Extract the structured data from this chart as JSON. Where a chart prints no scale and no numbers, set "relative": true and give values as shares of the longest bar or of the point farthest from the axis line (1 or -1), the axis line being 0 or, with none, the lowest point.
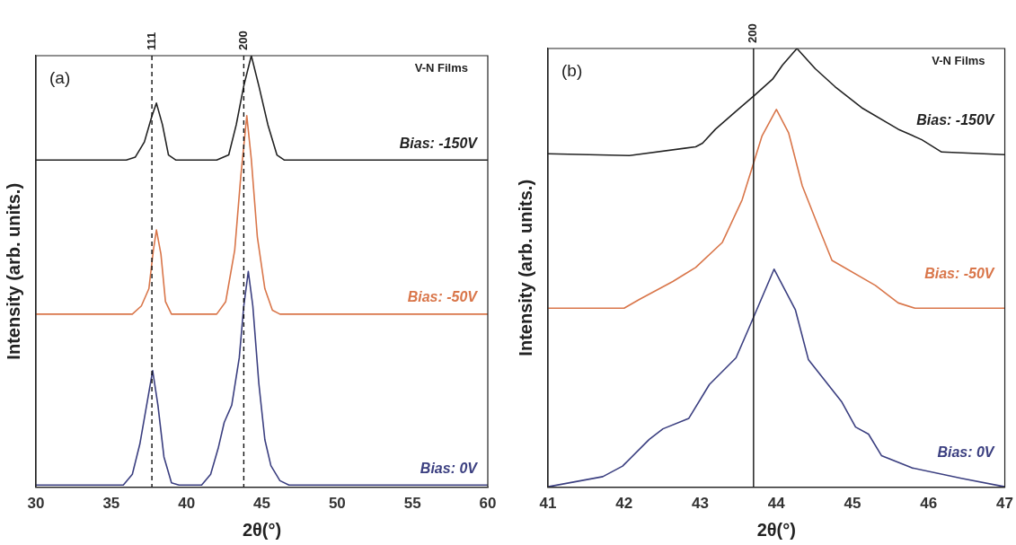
{
  "chart_data": [
    {
      "type": "line",
      "relative": true,
      "xlabel": "2θ(°)",
      "ylabel": "Intensity (arb. units.)",
      "xlim": [
        30,
        60
      ],
      "xticks": [
        30,
        35,
        40,
        45,
        50,
        55,
        60
      ],
      "grid": false,
      "legend": false,
      "marker": "none",
      "annotations": [
        "(a)",
        "V-N Films",
        "111",
        "200"
      ],
      "ref_lines": [
        {
          "axis": "x",
          "value": 37.7,
          "line_style": "dashed",
          "color": "#111111"
        },
        {
          "axis": "x",
          "value": 43.8,
          "line_style": "dashed",
          "color": "#111111"
        }
      ],
      "series": [
        {
          "name": "Bias: -150V",
          "color": "#222222",
          "x": [
            30,
            36.0,
            36.6,
            37.2,
            37.7,
            38.0,
            38.4,
            38.8,
            39.3,
            42.0,
            42.8,
            43.3,
            43.8,
            44.3,
            44.8,
            45.4,
            46.0,
            46.5,
            60
          ],
          "values": [
            0.758,
            0.758,
            0.765,
            0.8,
            0.86,
            0.89,
            0.84,
            0.77,
            0.758,
            0.758,
            0.77,
            0.84,
            0.93,
            1.0,
            0.93,
            0.84,
            0.77,
            0.758,
            0.758
          ]
        },
        {
          "name": "Bias: -50V",
          "color": "#d9764a",
          "x": [
            30,
            36.4,
            37.0,
            37.5,
            37.8,
            38.0,
            38.3,
            38.6,
            39.0,
            42.0,
            42.6,
            43.2,
            43.6,
            44.0,
            44.3,
            44.7,
            45.2,
            45.7,
            46.2,
            60
          ],
          "values": [
            0.401,
            0.401,
            0.42,
            0.46,
            0.55,
            0.596,
            0.54,
            0.43,
            0.401,
            0.401,
            0.43,
            0.55,
            0.72,
            0.861,
            0.76,
            0.58,
            0.46,
            0.41,
            0.401,
            0.401
          ]
        },
        {
          "name": "Bias: 0V",
          "color": "#3b3f80",
          "x": [
            30,
            35.8,
            36.4,
            36.9,
            37.3,
            37.75,
            38.1,
            38.5,
            39.0,
            39.5,
            41.0,
            41.6,
            42.1,
            42.5,
            43.0,
            43.5,
            43.8,
            44.1,
            44.4,
            44.8,
            45.2,
            45.6,
            46.2,
            46.8,
            60
          ],
          "values": [
            0.005,
            0.005,
            0.03,
            0.1,
            0.18,
            0.27,
            0.19,
            0.07,
            0.01,
            0.005,
            0.005,
            0.03,
            0.09,
            0.15,
            0.19,
            0.3,
            0.42,
            0.5,
            0.42,
            0.24,
            0.11,
            0.05,
            0.015,
            0.005,
            0.005
          ]
        }
      ]
    },
    {
      "type": "line",
      "relative": true,
      "xlabel": "2θ(°)",
      "ylabel": "Intensity (arb. units.)",
      "xlim": [
        41,
        47
      ],
      "xticks": [
        41,
        42,
        43,
        44,
        45,
        46,
        47
      ],
      "grid": false,
      "legend": false,
      "marker": "none",
      "annotations": [
        "(b)",
        "V-N Films",
        "200"
      ],
      "ref_lines": [
        {
          "axis": "x",
          "value": 43.7,
          "line_style": "solid",
          "color": "#111111"
        }
      ],
      "series": [
        {
          "name": "Bias: -150V",
          "color": "#222222",
          "x": [
            41,
            42.07,
            42.94,
            43.03,
            43.2,
            43.47,
            43.71,
            43.95,
            44.08,
            44.27,
            44.51,
            44.77,
            45.12,
            45.6,
            45.91,
            46.17,
            47
          ],
          "values": [
            0.76,
            0.756,
            0.776,
            0.784,
            0.816,
            0.857,
            0.893,
            0.93,
            0.962,
            1.0,
            0.954,
            0.913,
            0.865,
            0.816,
            0.792,
            0.764,
            0.758
          ]
        },
        {
          "name": "Bias: -50V",
          "color": "#d9764a",
          "x": [
            41,
            42.0,
            42.2,
            42.64,
            42.94,
            43.29,
            43.55,
            43.71,
            43.81,
            44.0,
            44.16,
            44.34,
            44.56,
            44.73,
            45.3,
            45.6,
            45.82,
            47
          ],
          "values": [
            0.408,
            0.408,
            0.428,
            0.469,
            0.501,
            0.558,
            0.655,
            0.744,
            0.8,
            0.861,
            0.808,
            0.687,
            0.59,
            0.517,
            0.46,
            0.42,
            0.408,
            0.408
          ]
        },
        {
          "name": "Bias: 0V",
          "color": "#3b3f80",
          "x": [
            41,
            41.72,
            41.98,
            42.33,
            42.51,
            42.85,
            43.12,
            43.47,
            43.64,
            43.97,
            44.25,
            44.42,
            44.86,
            45.04,
            45.21,
            45.38,
            45.78,
            46.43,
            47
          ],
          "values": [
            0.001,
            0.024,
            0.048,
            0.109,
            0.133,
            0.157,
            0.234,
            0.295,
            0.363,
            0.497,
            0.404,
            0.291,
            0.194,
            0.137,
            0.121,
            0.072,
            0.044,
            0.02,
            0.001
          ]
        }
      ]
    }
  ]
}
